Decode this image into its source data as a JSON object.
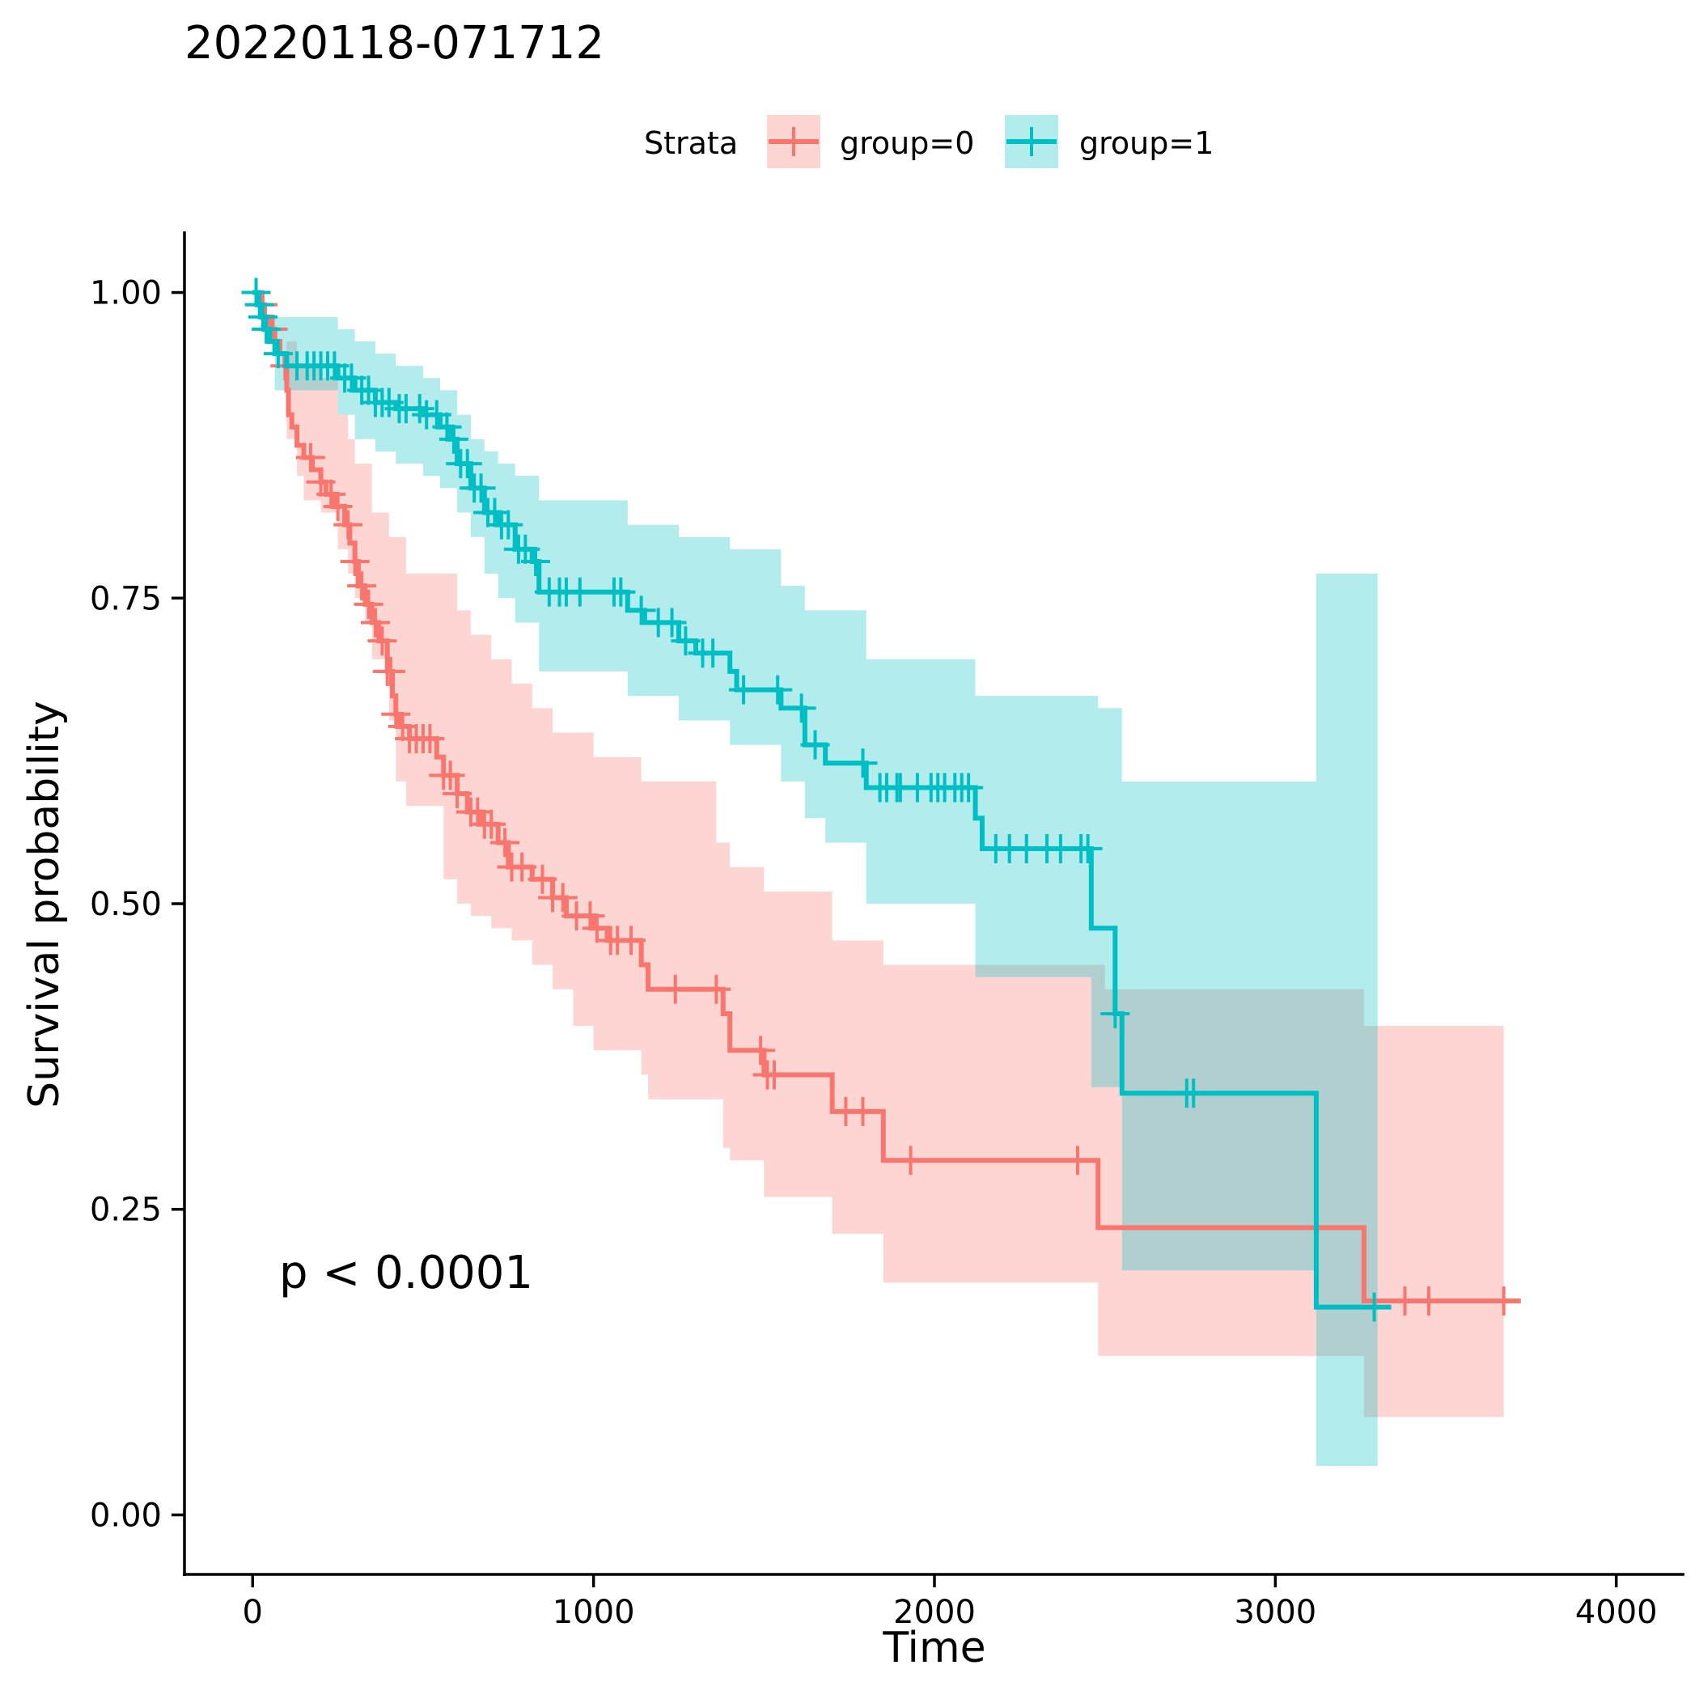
{
  "chart_data": {
    "type": "line",
    "title": "20220118-071712",
    "xlabel": "Time",
    "ylabel": "Survival probability",
    "xlim": [
      -200,
      4200
    ],
    "ylim": [
      -0.05,
      1.05
    ],
    "x_ticks": [
      "0",
      "1000",
      "2000",
      "3000",
      "4000"
    ],
    "x_tick_values": [
      0,
      1000,
      2000,
      3000,
      4000
    ],
    "y_ticks": [
      "0.00",
      "0.25",
      "0.50",
      "0.75",
      "1.00"
    ],
    "y_tick_values": [
      0,
      0.25,
      0.5,
      0.75,
      1.0
    ],
    "legend": {
      "title": "Strata",
      "position": "top"
    },
    "annotation": "p < 0.0001",
    "grid": false,
    "series": [
      {
        "name": "group=0",
        "color": "#F8766D",
        "steps": [
          [
            0,
            1.0
          ],
          [
            20,
            0.99
          ],
          [
            35,
            0.98
          ],
          [
            50,
            0.97
          ],
          [
            65,
            0.96
          ],
          [
            80,
            0.95
          ],
          [
            95,
            0.94
          ],
          [
            100,
            0.92
          ],
          [
            105,
            0.9
          ],
          [
            115,
            0.89
          ],
          [
            130,
            0.875
          ],
          [
            150,
            0.865
          ],
          [
            175,
            0.855
          ],
          [
            200,
            0.845
          ],
          [
            215,
            0.835
          ],
          [
            240,
            0.825
          ],
          [
            270,
            0.81
          ],
          [
            285,
            0.795
          ],
          [
            300,
            0.78
          ],
          [
            310,
            0.76
          ],
          [
            330,
            0.745
          ],
          [
            350,
            0.73
          ],
          [
            370,
            0.715
          ],
          [
            395,
            0.69
          ],
          [
            410,
            0.67
          ],
          [
            420,
            0.655
          ],
          [
            430,
            0.645
          ],
          [
            460,
            0.635
          ],
          [
            540,
            0.62
          ],
          [
            560,
            0.605
          ],
          [
            600,
            0.59
          ],
          [
            630,
            0.575
          ],
          [
            670,
            0.565
          ],
          [
            720,
            0.55
          ],
          [
            750,
            0.53
          ],
          [
            820,
            0.52
          ],
          [
            880,
            0.505
          ],
          [
            920,
            0.49
          ],
          [
            1000,
            0.48
          ],
          [
            1040,
            0.47
          ],
          [
            1140,
            0.45
          ],
          [
            1160,
            0.43
          ],
          [
            1380,
            0.41
          ],
          [
            1400,
            0.38
          ],
          [
            1500,
            0.36
          ],
          [
            1700,
            0.33
          ],
          [
            1850,
            0.29
          ],
          [
            2480,
            0.235
          ],
          [
            3260,
            0.175
          ]
        ],
        "end_x": 3720,
        "ci_upper": [
          [
            0,
            1.0
          ],
          [
            100,
            0.96
          ],
          [
            130,
            0.94
          ],
          [
            200,
            0.93
          ],
          [
            250,
            0.9
          ],
          [
            280,
            0.88
          ],
          [
            300,
            0.86
          ],
          [
            350,
            0.82
          ],
          [
            400,
            0.8
          ],
          [
            450,
            0.77
          ],
          [
            560,
            0.77
          ],
          [
            600,
            0.74
          ],
          [
            640,
            0.72
          ],
          [
            700,
            0.7
          ],
          [
            760,
            0.68
          ],
          [
            820,
            0.66
          ],
          [
            880,
            0.64
          ],
          [
            1000,
            0.62
          ],
          [
            1140,
            0.6
          ],
          [
            1360,
            0.55
          ],
          [
            1400,
            0.53
          ],
          [
            1500,
            0.51
          ],
          [
            1700,
            0.47
          ],
          [
            1850,
            0.45
          ],
          [
            2500,
            0.43
          ],
          [
            3260,
            0.4
          ],
          [
            3670,
            0.4
          ]
        ],
        "ci_lower": [
          [
            0,
            1.0
          ],
          [
            100,
            0.88
          ],
          [
            130,
            0.85
          ],
          [
            150,
            0.83
          ],
          [
            200,
            0.82
          ],
          [
            250,
            0.79
          ],
          [
            280,
            0.77
          ],
          [
            300,
            0.75
          ],
          [
            330,
            0.73
          ],
          [
            350,
            0.7
          ],
          [
            400,
            0.65
          ],
          [
            420,
            0.6
          ],
          [
            450,
            0.58
          ],
          [
            560,
            0.52
          ],
          [
            600,
            0.5
          ],
          [
            640,
            0.49
          ],
          [
            700,
            0.48
          ],
          [
            760,
            0.47
          ],
          [
            820,
            0.45
          ],
          [
            880,
            0.43
          ],
          [
            940,
            0.4
          ],
          [
            1000,
            0.38
          ],
          [
            1140,
            0.36
          ],
          [
            1160,
            0.34
          ],
          [
            1380,
            0.3
          ],
          [
            1400,
            0.29
          ],
          [
            1500,
            0.26
          ],
          [
            1700,
            0.23
          ],
          [
            1850,
            0.19
          ],
          [
            2480,
            0.13
          ],
          [
            3260,
            0.08
          ],
          [
            3670,
            0.08
          ]
        ],
        "censor_x": [
          30,
          60,
          95,
          170,
          200,
          230,
          250,
          280,
          300,
          320,
          340,
          360,
          380,
          395,
          405,
          420,
          440,
          460,
          480,
          500,
          520,
          560,
          580,
          600,
          640,
          660,
          680,
          700,
          740,
          760,
          790,
          850,
          880,
          910,
          950,
          990,
          1010,
          1050,
          1070,
          1110,
          1240,
          1360,
          1490,
          1510,
          1530,
          1740,
          1790,
          1930,
          2420,
          3380,
          3450,
          3670
        ]
      },
      {
        "name": "group=1",
        "color": "#00BFC4",
        "steps": [
          [
            0,
            1.0
          ],
          [
            15,
            0.99
          ],
          [
            25,
            0.98
          ],
          [
            35,
            0.97
          ],
          [
            50,
            0.96
          ],
          [
            65,
            0.95
          ],
          [
            100,
            0.94
          ],
          [
            250,
            0.93
          ],
          [
            300,
            0.92
          ],
          [
            360,
            0.91
          ],
          [
            420,
            0.905
          ],
          [
            500,
            0.9
          ],
          [
            550,
            0.89
          ],
          [
            580,
            0.88
          ],
          [
            600,
            0.86
          ],
          [
            640,
            0.84
          ],
          [
            680,
            0.82
          ],
          [
            720,
            0.81
          ],
          [
            770,
            0.79
          ],
          [
            820,
            0.78
          ],
          [
            840,
            0.755
          ],
          [
            1100,
            0.74
          ],
          [
            1150,
            0.73
          ],
          [
            1250,
            0.715
          ],
          [
            1300,
            0.705
          ],
          [
            1400,
            0.69
          ],
          [
            1420,
            0.675
          ],
          [
            1550,
            0.66
          ],
          [
            1620,
            0.63
          ],
          [
            1680,
            0.615
          ],
          [
            1800,
            0.595
          ],
          [
            2120,
            0.57
          ],
          [
            2140,
            0.545
          ],
          [
            2460,
            0.48
          ],
          [
            2530,
            0.41
          ],
          [
            2550,
            0.345
          ],
          [
            3120,
            0.17
          ]
        ],
        "end_x": 3340,
        "ci_upper": [
          [
            0,
            1.0
          ],
          [
            65,
            0.98
          ],
          [
            250,
            0.97
          ],
          [
            300,
            0.96
          ],
          [
            360,
            0.95
          ],
          [
            420,
            0.94
          ],
          [
            500,
            0.93
          ],
          [
            550,
            0.92
          ],
          [
            600,
            0.9
          ],
          [
            640,
            0.88
          ],
          [
            680,
            0.87
          ],
          [
            720,
            0.86
          ],
          [
            770,
            0.85
          ],
          [
            840,
            0.83
          ],
          [
            1100,
            0.81
          ],
          [
            1250,
            0.8
          ],
          [
            1400,
            0.79
          ],
          [
            1550,
            0.76
          ],
          [
            1620,
            0.74
          ],
          [
            1800,
            0.7
          ],
          [
            2120,
            0.67
          ],
          [
            2480,
            0.66
          ],
          [
            2550,
            0.6
          ],
          [
            3120,
            0.77
          ],
          [
            3300,
            0.77
          ]
        ],
        "ci_lower": [
          [
            0,
            1.0
          ],
          [
            65,
            0.92
          ],
          [
            250,
            0.9
          ],
          [
            300,
            0.88
          ],
          [
            360,
            0.87
          ],
          [
            420,
            0.86
          ],
          [
            500,
            0.85
          ],
          [
            550,
            0.84
          ],
          [
            600,
            0.82
          ],
          [
            640,
            0.8
          ],
          [
            680,
            0.77
          ],
          [
            720,
            0.75
          ],
          [
            770,
            0.73
          ],
          [
            840,
            0.69
          ],
          [
            1100,
            0.67
          ],
          [
            1250,
            0.65
          ],
          [
            1400,
            0.63
          ],
          [
            1550,
            0.6
          ],
          [
            1620,
            0.57
          ],
          [
            1680,
            0.55
          ],
          [
            1800,
            0.5
          ],
          [
            2120,
            0.44
          ],
          [
            2460,
            0.35
          ],
          [
            2550,
            0.2
          ],
          [
            3120,
            0.04
          ],
          [
            3300,
            0.04
          ]
        ],
        "censor_x": [
          10,
          20,
          30,
          40,
          75,
          130,
          160,
          180,
          200,
          220,
          240,
          270,
          290,
          320,
          340,
          360,
          380,
          400,
          430,
          450,
          490,
          510,
          540,
          570,
          590,
          610,
          630,
          650,
          670,
          690,
          710,
          730,
          750,
          780,
          800,
          830,
          870,
          900,
          920,
          960,
          1060,
          1080,
          1140,
          1190,
          1230,
          1270,
          1320,
          1350,
          1440,
          1540,
          1610,
          1650,
          1790,
          1840,
          1860,
          1890,
          1900,
          1950,
          1990,
          2010,
          2030,
          2060,
          2080,
          2100,
          2180,
          2220,
          2270,
          2330,
          2370,
          2430,
          2450,
          2530,
          2740,
          2760,
          3290
        ]
      }
    ]
  }
}
